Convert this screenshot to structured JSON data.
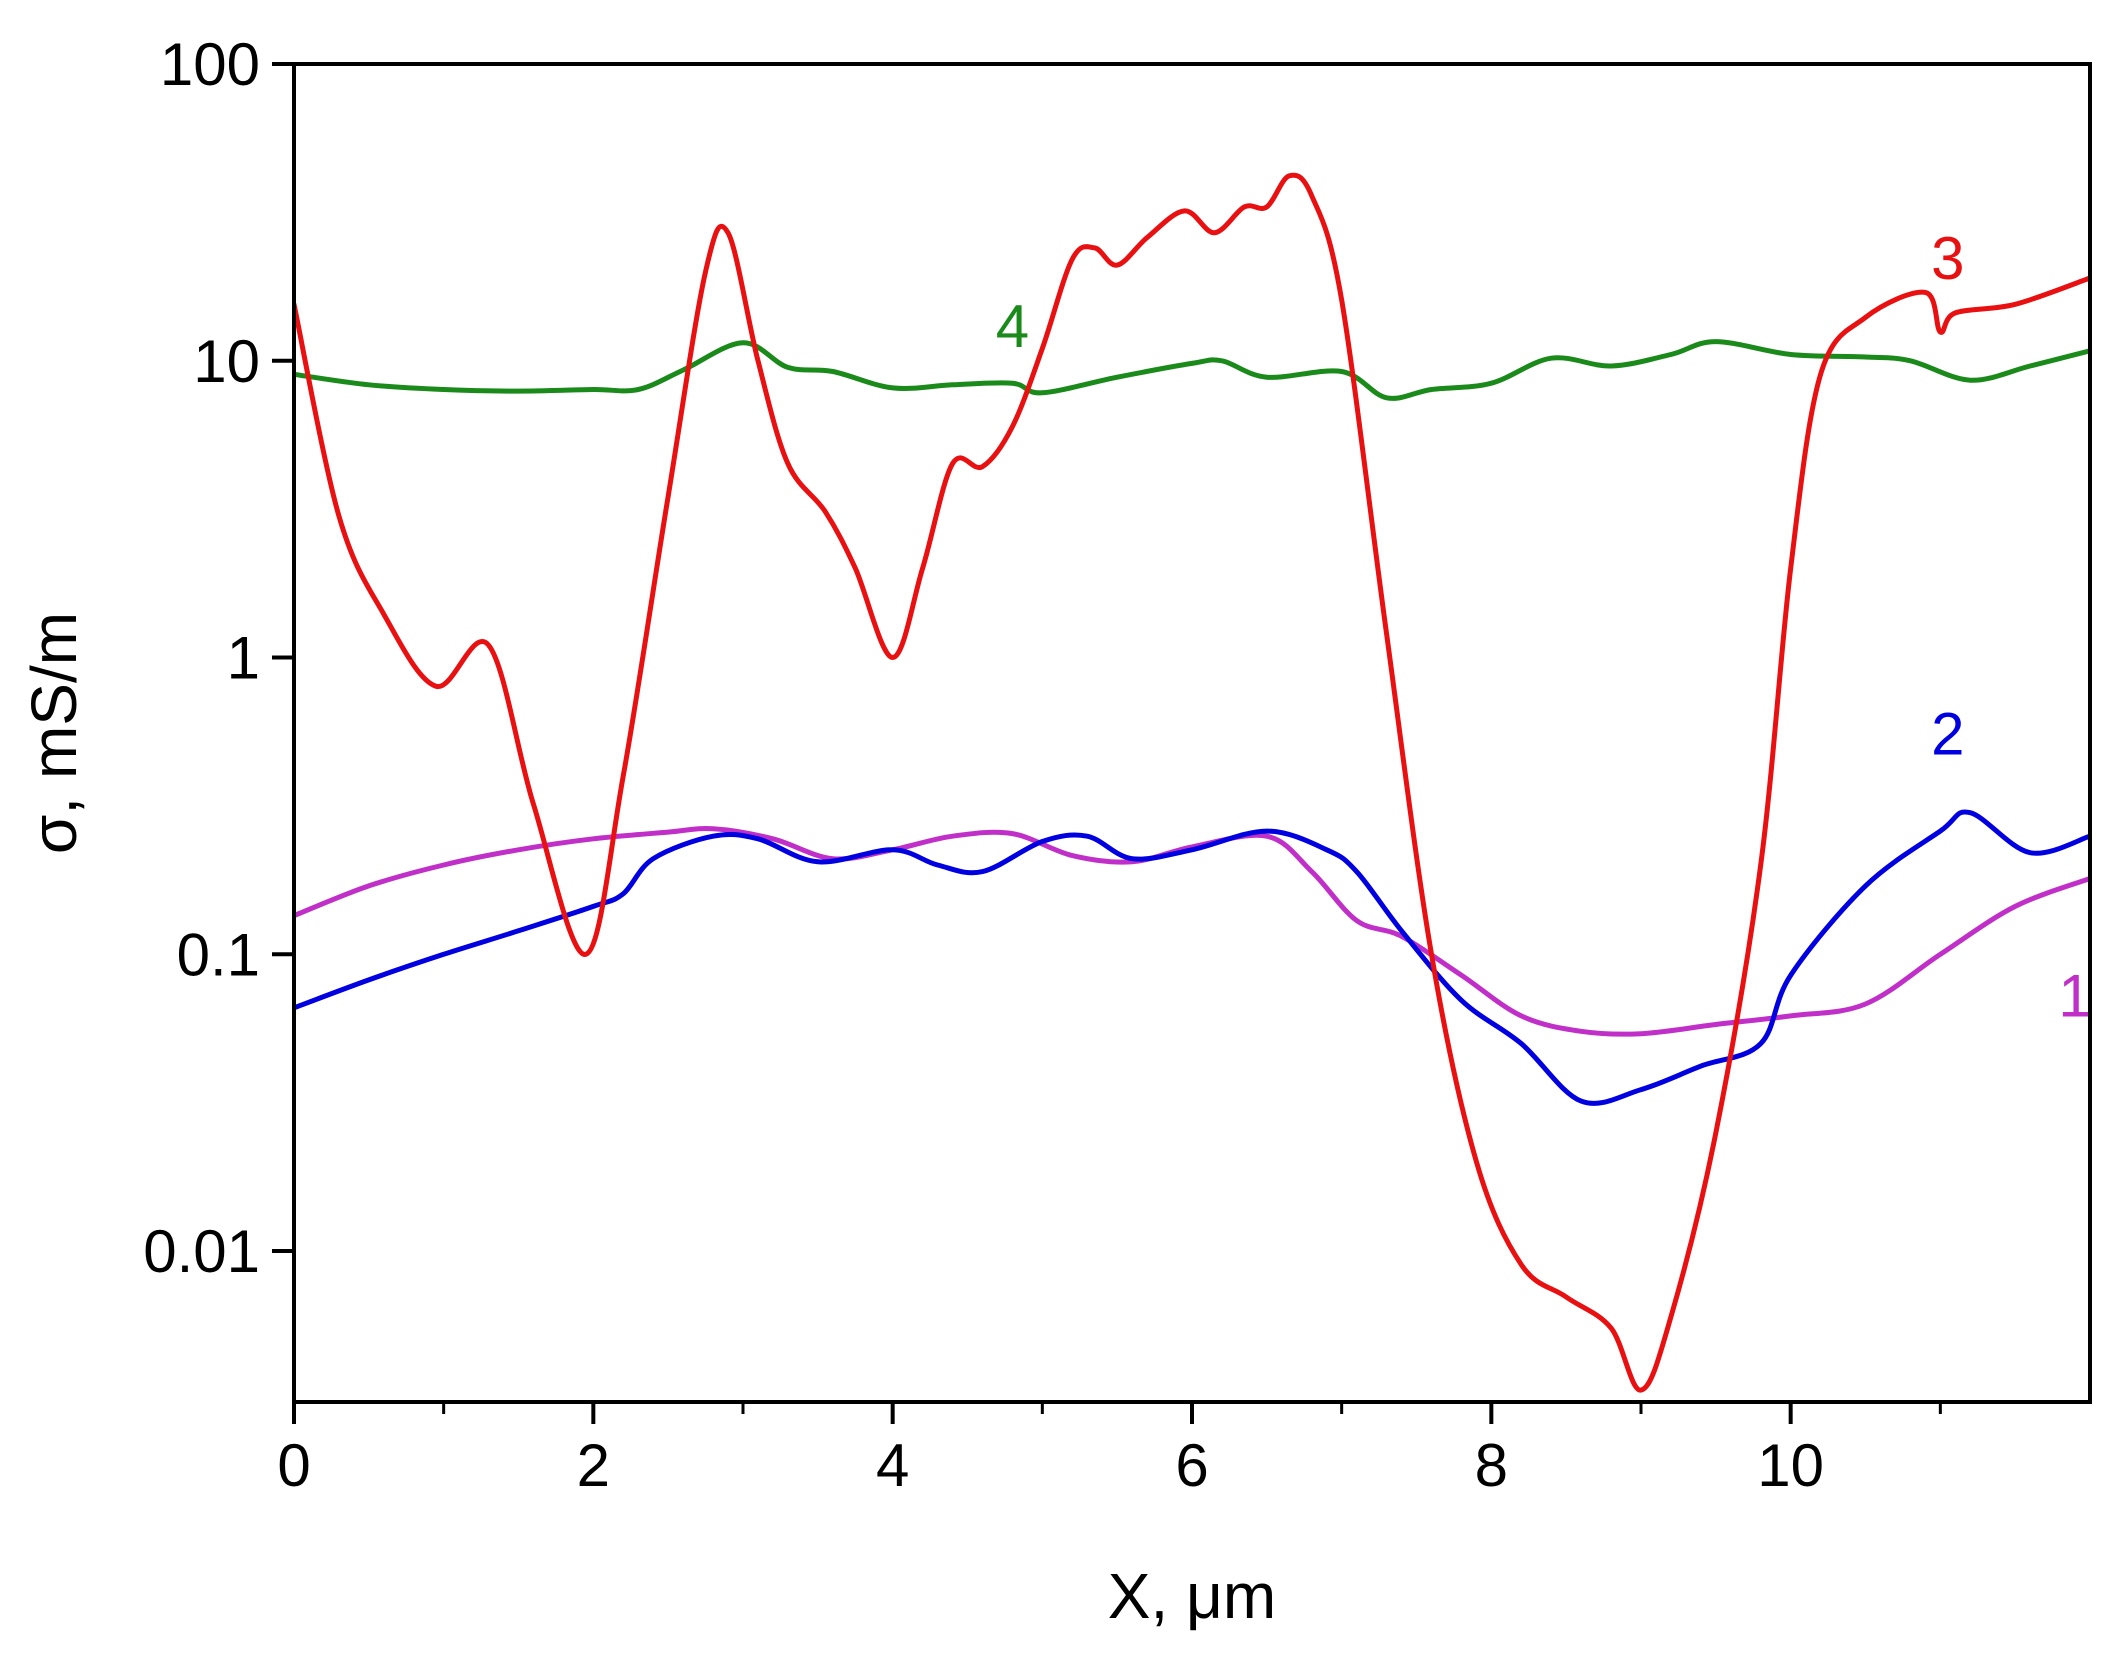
{
  "chart_data": {
    "type": "line",
    "xlabel": "X, μm",
    "ylabel": "σ, mS/m",
    "xlim": [
      0,
      12
    ],
    "ylim": [
      0.0031,
      100
    ],
    "yscale": "log",
    "grid": false,
    "x_ticks": [
      0,
      2,
      4,
      6,
      8,
      10
    ],
    "x_tick_labels": [
      "0",
      "2",
      "4",
      "6",
      "8",
      "10"
    ],
    "y_ticks": [
      0.01,
      0.1,
      1,
      10,
      100
    ],
    "y_tick_labels": [
      "0.01",
      "0.1",
      "1",
      "10",
      "100"
    ],
    "series": [
      {
        "name": "1",
        "color": "#c030c8",
        "x": [
          0,
          0.5,
          1,
          1.5,
          2,
          2.5,
          2.8,
          3.2,
          3.6,
          4,
          4.4,
          4.8,
          5.2,
          5.6,
          6,
          6.5,
          6.8,
          7.1,
          7.4,
          7.8,
          8.2,
          8.6,
          9,
          9.5,
          10,
          10.5,
          11,
          11.5,
          12
        ],
        "y": [
          0.135,
          0.17,
          0.2,
          0.225,
          0.245,
          0.258,
          0.265,
          0.245,
          0.21,
          0.225,
          0.25,
          0.255,
          0.215,
          0.205,
          0.23,
          0.25,
          0.19,
          0.13,
          0.115,
          0.085,
          0.062,
          0.055,
          0.054,
          0.058,
          0.062,
          0.068,
          0.1,
          0.145,
          0.18
        ]
      },
      {
        "name": "2",
        "color": "#0000e0",
        "x": [
          0,
          0.5,
          1,
          1.5,
          2,
          2.2,
          2.4,
          2.8,
          3.1,
          3.5,
          4,
          4.3,
          4.6,
          5,
          5.3,
          5.6,
          6,
          6.5,
          6.9,
          7.1,
          7.4,
          7.8,
          8.2,
          8.6,
          9,
          9.4,
          9.8,
          10,
          10.5,
          11,
          11.2,
          11.6,
          12
        ],
        "y": [
          0.066,
          0.082,
          0.1,
          0.12,
          0.145,
          0.16,
          0.21,
          0.25,
          0.245,
          0.205,
          0.225,
          0.2,
          0.19,
          0.24,
          0.25,
          0.21,
          0.225,
          0.26,
          0.225,
          0.19,
          0.12,
          0.07,
          0.05,
          0.032,
          0.035,
          0.042,
          0.05,
          0.085,
          0.17,
          0.26,
          0.3,
          0.22,
          0.25
        ]
      },
      {
        "name": "3",
        "color": "#e81010",
        "x": [
          0,
          0.3,
          0.6,
          0.95,
          1.3,
          1.6,
          1.95,
          2.2,
          2.5,
          2.75,
          2.9,
          3.1,
          3.3,
          3.55,
          3.75,
          4,
          4.2,
          4.4,
          4.6,
          4.8,
          5.0,
          5.2,
          5.35,
          5.5,
          5.7,
          5.95,
          6.15,
          6.35,
          6.5,
          6.65,
          6.8,
          7.0,
          7.3,
          7.6,
          7.9,
          8.2,
          8.5,
          8.8,
          9.0,
          9.2,
          9.5,
          9.8,
          10.0,
          10.2,
          10.5,
          10.9,
          11.0,
          11.1,
          11.5,
          12
        ],
        "y": [
          15.5,
          3.0,
          1.4,
          0.8,
          1.1,
          0.32,
          0.1,
          0.4,
          3.5,
          20,
          27,
          10,
          4.5,
          3.1,
          2.0,
          1.0,
          2.0,
          4.5,
          4.4,
          6.0,
          11,
          22,
          24,
          21,
          26,
          32,
          27,
          33,
          33,
          42,
          36,
          16,
          1.2,
          0.1,
          0.02,
          0.009,
          0.007,
          0.0055,
          0.0034,
          0.006,
          0.025,
          0.2,
          2.0,
          9,
          14,
          17,
          12.5,
          14.5,
          15.5,
          19
        ]
      },
      {
        "name": "4",
        "color": "#1a8a1a",
        "x": [
          0,
          0.5,
          1,
          1.5,
          2,
          2.3,
          2.6,
          3.0,
          3.3,
          3.6,
          4,
          4.4,
          4.8,
          5.0,
          5.5,
          6,
          6.2,
          6.5,
          7,
          7.3,
          7.6,
          8,
          8.4,
          8.8,
          9.2,
          9.5,
          10,
          10.5,
          10.8,
          11.2,
          11.6,
          12
        ],
        "y": [
          9.0,
          8.3,
          8.0,
          7.9,
          8.0,
          8.0,
          9.3,
          11.5,
          9.5,
          9.2,
          8.1,
          8.3,
          8.4,
          7.8,
          8.8,
          9.8,
          10,
          8.8,
          9.2,
          7.5,
          8.0,
          8.4,
          10.2,
          9.6,
          10.5,
          11.6,
          10.5,
          10.3,
          10.0,
          8.6,
          9.6,
          10.8
        ]
      }
    ],
    "annotations": [
      "1",
      "2",
      "3",
      "4"
    ]
  },
  "colors": {
    "axis": "#000000",
    "background": "#ffffff"
  }
}
